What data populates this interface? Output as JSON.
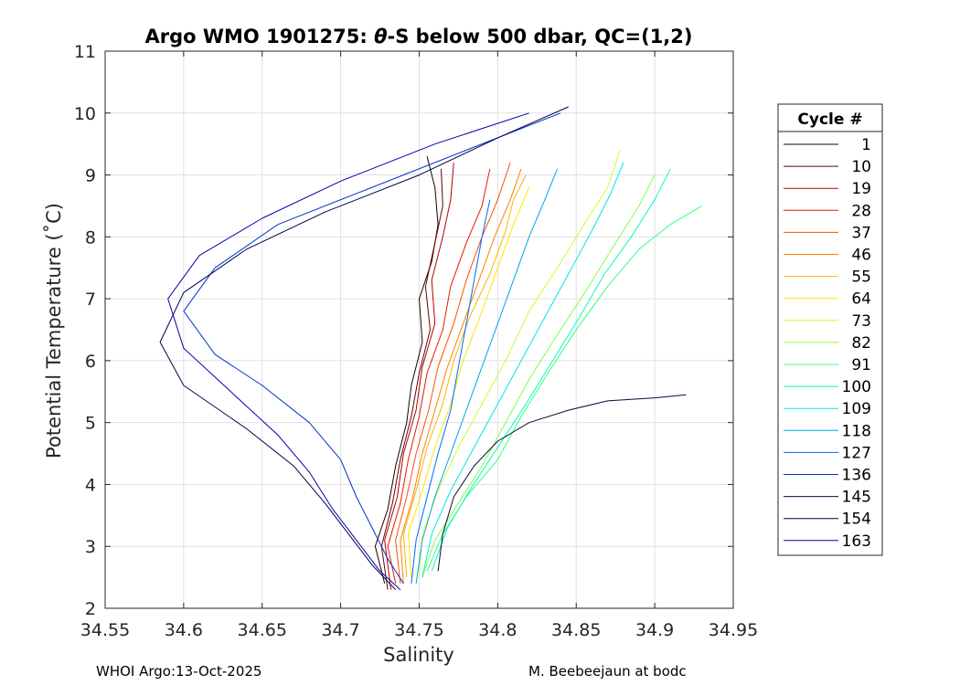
{
  "chart_data": {
    "type": "line",
    "title_prefix": "Argo WMO 1901275: ",
    "title_theta": "θ",
    "title_suffix": "-S below 500 dbar,  QC=(1,2)",
    "xlabel": "Salinity",
    "ylabel": "Potential Temperature (˚C)",
    "xlim": [
      34.55,
      34.95
    ],
    "ylim": [
      2,
      11
    ],
    "xticks": [
      "34.55",
      "34.6",
      "34.65",
      "34.7",
      "34.75",
      "34.8",
      "34.85",
      "34.9",
      "34.95"
    ],
    "yticks": [
      "2",
      "3",
      "4",
      "5",
      "6",
      "7",
      "8",
      "9",
      "10",
      "11"
    ],
    "grid": true,
    "legend_title": "Cycle #",
    "legend_position": "right",
    "legend": [
      {
        "label": "1",
        "color": "#1a0000"
      },
      {
        "label": "10",
        "color": "#660000"
      },
      {
        "label": "19",
        "color": "#b30000"
      },
      {
        "label": "28",
        "color": "#e61a00"
      },
      {
        "label": "37",
        "color": "#ff4d00"
      },
      {
        "label": "46",
        "color": "#ff8000"
      },
      {
        "label": "55",
        "color": "#ffb300"
      },
      {
        "label": "64",
        "color": "#ffe600"
      },
      {
        "label": "73",
        "color": "#ccff33"
      },
      {
        "label": "82",
        "color": "#80ff4d"
      },
      {
        "label": "91",
        "color": "#33ff80"
      },
      {
        "label": "100",
        "color": "#00ffb3"
      },
      {
        "label": "109",
        "color": "#00e6e6"
      },
      {
        "label": "118",
        "color": "#00a6e6"
      },
      {
        "label": "127",
        "color": "#0066ff"
      },
      {
        "label": "136",
        "color": "#0033cc"
      },
      {
        "label": "145",
        "color": "#0a0a3a"
      },
      {
        "label": "154",
        "color": "#00004d"
      },
      {
        "label": "163",
        "color": "#0000b3"
      }
    ],
    "series": [
      {
        "name": "1",
        "color": "#1a0000",
        "x": [
          34.728,
          34.722,
          34.73,
          34.735,
          34.742,
          34.745,
          34.752,
          34.75,
          34.758,
          34.762,
          34.76,
          34.755
        ],
        "y": [
          2.4,
          3.0,
          3.6,
          4.3,
          5.0,
          5.6,
          6.3,
          7.0,
          7.6,
          8.2,
          8.8,
          9.3
        ]
      },
      {
        "name": "10",
        "color": "#660000",
        "x": [
          34.73,
          34.726,
          34.733,
          34.738,
          34.745,
          34.75,
          34.757,
          34.754,
          34.76,
          34.765,
          34.764
        ],
        "y": [
          2.3,
          3.0,
          3.7,
          4.4,
          5.1,
          5.8,
          6.5,
          7.2,
          7.9,
          8.5,
          9.1
        ]
      },
      {
        "name": "19",
        "color": "#b30000",
        "x": [
          34.732,
          34.728,
          34.736,
          34.74,
          34.748,
          34.752,
          34.76,
          34.758,
          34.765,
          34.77,
          34.772
        ],
        "y": [
          2.3,
          3.1,
          3.8,
          4.5,
          5.2,
          5.9,
          6.6,
          7.3,
          8.0,
          8.6,
          9.2
        ]
      },
      {
        "name": "28",
        "color": "#e61a00",
        "x": [
          34.735,
          34.73,
          34.738,
          34.743,
          34.75,
          34.755,
          34.765,
          34.77,
          34.78,
          34.79,
          34.795
        ],
        "y": [
          2.4,
          3.0,
          3.7,
          4.4,
          5.1,
          5.8,
          6.5,
          7.2,
          7.9,
          8.5,
          9.1
        ]
      },
      {
        "name": "37",
        "color": "#ff4d00",
        "x": [
          34.738,
          34.735,
          34.742,
          34.748,
          34.756,
          34.762,
          34.772,
          34.78,
          34.79,
          34.8,
          34.808
        ],
        "y": [
          2.4,
          3.1,
          3.8,
          4.5,
          5.2,
          5.9,
          6.6,
          7.3,
          8.0,
          8.6,
          9.2
        ]
      },
      {
        "name": "46",
        "color": "#ff8000",
        "x": [
          34.74,
          34.738,
          34.746,
          34.752,
          34.76,
          34.768,
          34.778,
          34.788,
          34.798,
          34.808,
          34.815
        ],
        "y": [
          2.4,
          3.1,
          3.8,
          4.5,
          5.2,
          5.9,
          6.6,
          7.3,
          8.0,
          8.6,
          9.1
        ]
      },
      {
        "name": "55",
        "color": "#ffb300",
        "x": [
          34.742,
          34.74,
          34.748,
          34.755,
          34.765,
          34.772,
          34.782,
          34.795,
          34.805,
          34.81,
          34.818
        ],
        "y": [
          2.5,
          3.2,
          3.9,
          4.6,
          5.3,
          6.0,
          6.7,
          7.4,
          8.1,
          8.6,
          9.0
        ]
      },
      {
        "name": "64",
        "color": "#ffe600",
        "x": [
          34.745,
          34.743,
          34.752,
          34.76,
          34.77,
          34.778,
          34.79,
          34.8,
          34.81,
          34.82
        ],
        "y": [
          2.5,
          3.2,
          3.9,
          4.6,
          5.3,
          6.0,
          6.8,
          7.5,
          8.2,
          8.8
        ]
      },
      {
        "name": "73",
        "color": "#ccff33",
        "x": [
          34.75,
          34.752,
          34.762,
          34.775,
          34.79,
          34.805,
          34.82,
          34.838,
          34.855,
          34.87,
          34.878
        ],
        "y": [
          2.5,
          3.2,
          3.9,
          4.6,
          5.3,
          6.0,
          6.8,
          7.5,
          8.2,
          8.8,
          9.4
        ]
      },
      {
        "name": "82",
        "color": "#80ff4d",
        "x": [
          34.752,
          34.76,
          34.775,
          34.79,
          34.805,
          34.82,
          34.84,
          34.858,
          34.875,
          34.89,
          34.9
        ],
        "y": [
          2.5,
          3.1,
          3.7,
          4.3,
          5.0,
          5.7,
          6.5,
          7.2,
          7.9,
          8.5,
          9.0
        ]
      },
      {
        "name": "91",
        "color": "#33ff80",
        "x": [
          34.755,
          34.765,
          34.78,
          34.8,
          34.815,
          34.832,
          34.85,
          34.87,
          34.89,
          34.91,
          34.93
        ],
        "y": [
          2.6,
          3.2,
          3.8,
          4.4,
          5.1,
          5.8,
          6.5,
          7.2,
          7.8,
          8.2,
          8.5
        ]
      },
      {
        "name": "100",
        "color": "#00ffb3",
        "x": [
          34.758,
          34.768,
          34.782,
          34.8,
          34.818,
          34.835,
          34.852,
          34.868,
          34.885,
          34.9,
          34.91
        ],
        "y": [
          2.6,
          3.3,
          3.9,
          4.6,
          5.3,
          6.0,
          6.7,
          7.4,
          8.0,
          8.6,
          9.1
        ]
      },
      {
        "name": "109",
        "color": "#00e6e6",
        "x": [
          34.752,
          34.758,
          34.77,
          34.785,
          34.8,
          34.815,
          34.83,
          34.845,
          34.86,
          34.872,
          34.88
        ],
        "y": [
          2.5,
          3.2,
          3.9,
          4.6,
          5.3,
          6.0,
          6.7,
          7.4,
          8.1,
          8.7,
          9.2
        ]
      },
      {
        "name": "118",
        "color": "#00a6e6",
        "x": [
          34.748,
          34.752,
          34.76,
          34.77,
          34.78,
          34.79,
          34.8,
          34.81,
          34.82,
          34.83,
          34.838
        ],
        "y": [
          2.4,
          3.1,
          3.8,
          4.5,
          5.2,
          5.9,
          6.6,
          7.3,
          8.0,
          8.6,
          9.1
        ]
      },
      {
        "name": "127",
        "color": "#0066ff",
        "x": [
          34.745,
          34.748,
          34.755,
          34.762,
          34.77,
          34.775,
          34.78,
          34.785,
          34.79,
          34.795
        ],
        "y": [
          2.4,
          3.1,
          3.8,
          4.5,
          5.2,
          5.9,
          6.6,
          7.3,
          8.0,
          8.6
        ]
      },
      {
        "name": "136",
        "color": "#0033cc",
        "x": [
          34.74,
          34.73,
          34.72,
          34.71,
          34.7,
          34.68,
          34.65,
          34.62,
          34.6,
          34.62,
          34.66,
          34.72,
          34.78,
          34.84
        ],
        "y": [
          2.4,
          2.8,
          3.3,
          3.8,
          4.4,
          5.0,
          5.6,
          6.1,
          6.8,
          7.5,
          8.2,
          8.8,
          9.4,
          10.0
        ]
      },
      {
        "name": "145",
        "color": "#0a0a3a",
        "x": [
          34.762,
          34.765,
          34.772,
          34.785,
          34.8,
          34.82,
          34.845,
          34.87,
          34.9,
          34.92
        ],
        "y": [
          2.6,
          3.2,
          3.8,
          4.3,
          4.7,
          5.0,
          5.2,
          5.35,
          5.4,
          5.45
        ]
      },
      {
        "name": "154",
        "color": "#00004d",
        "x": [
          34.735,
          34.72,
          34.705,
          34.69,
          34.67,
          34.64,
          34.6,
          34.585,
          34.6,
          34.64,
          34.69,
          34.75,
          34.8,
          34.845
        ],
        "y": [
          2.3,
          2.7,
          3.2,
          3.7,
          4.3,
          4.9,
          5.6,
          6.3,
          7.1,
          7.8,
          8.4,
          9.0,
          9.6,
          10.1
        ]
      },
      {
        "name": "163",
        "color": "#0000b3",
        "x": [
          34.738,
          34.725,
          34.71,
          34.695,
          34.68,
          34.66,
          34.63,
          34.6,
          34.59,
          34.61,
          34.65,
          34.7,
          34.76,
          34.82
        ],
        "y": [
          2.3,
          2.6,
          3.1,
          3.6,
          4.2,
          4.8,
          5.5,
          6.2,
          7.0,
          7.7,
          8.3,
          8.9,
          9.5,
          10.0
        ]
      }
    ]
  },
  "footer": {
    "left": "WHOI Argo:13-Oct-2025",
    "right": "M. Beebeejaun at bodc"
  }
}
